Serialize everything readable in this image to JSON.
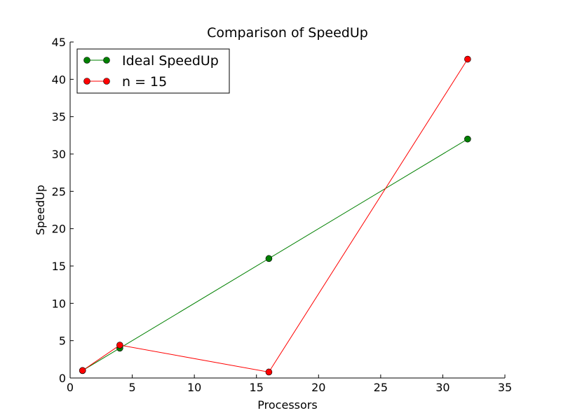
{
  "chart_data": {
    "type": "line",
    "title": "Comparison of SpeedUp",
    "xlabel": "Processors",
    "ylabel": "SpeedUp",
    "xlim": [
      0,
      35
    ],
    "ylim": [
      0,
      45
    ],
    "xticks": [
      0,
      5,
      10,
      15,
      20,
      25,
      30,
      35
    ],
    "yticks": [
      0,
      5,
      10,
      15,
      20,
      25,
      30,
      35,
      40,
      45
    ],
    "grid": false,
    "legend_position": "top-left",
    "series": [
      {
        "name": "Ideal SpeedUp",
        "color": "#008000",
        "x": [
          1,
          4,
          16,
          32
        ],
        "y": [
          1,
          4,
          16,
          32
        ]
      },
      {
        "name": "n = 15",
        "color": "#ff0000",
        "x": [
          1,
          4,
          16,
          32
        ],
        "y": [
          1,
          4.4,
          0.8,
          42.7
        ]
      }
    ]
  }
}
